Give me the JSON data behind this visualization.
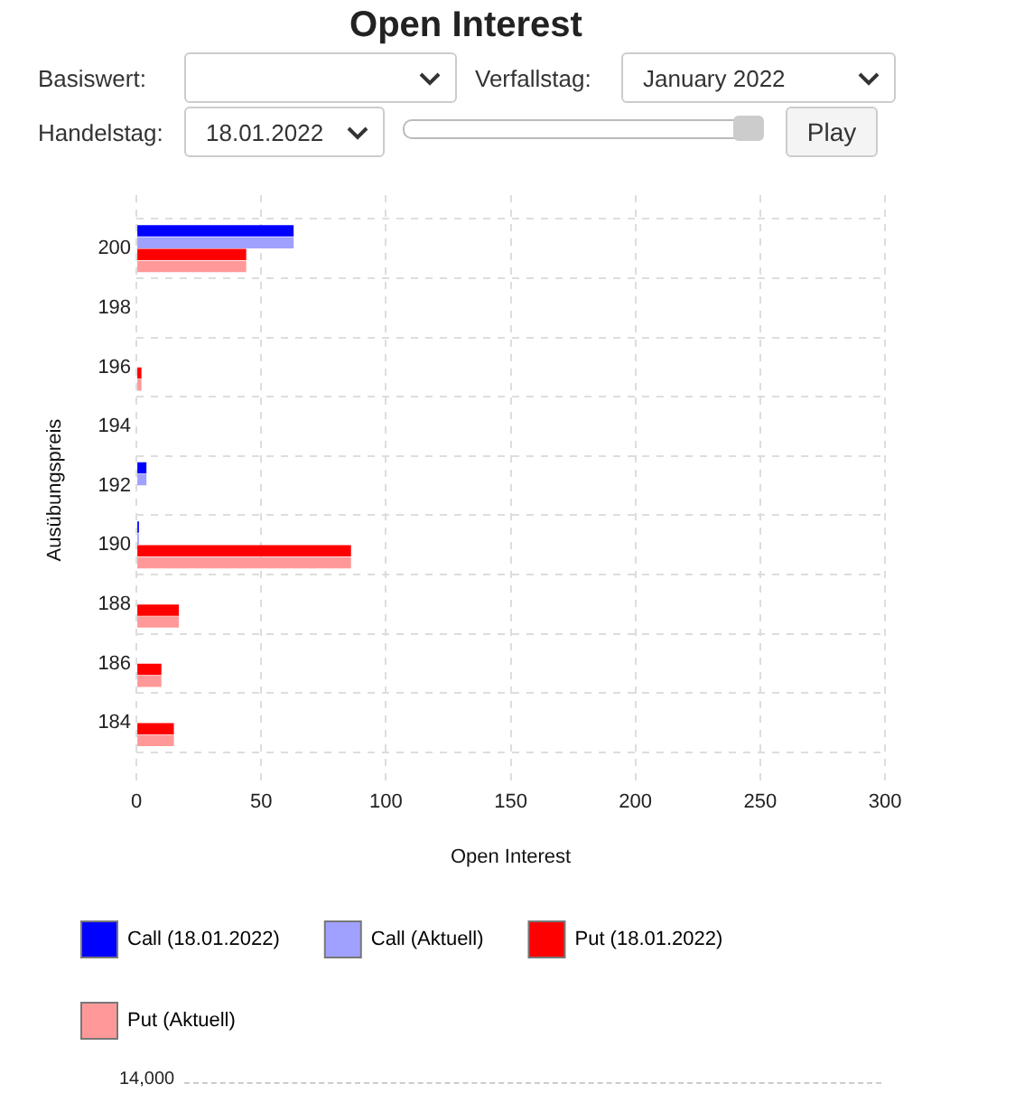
{
  "chart_data": {
    "type": "bar",
    "title": "Open Interest",
    "orientation": "horizontal",
    "x": [
      200,
      196,
      192,
      190,
      188,
      186,
      184
    ],
    "series": [
      {
        "name": "Call (18.01.2022)",
        "color": "#0000ff",
        "values": [
          63,
          null,
          4,
          1,
          null,
          null,
          null
        ]
      },
      {
        "name": "Call (Aktuell)",
        "color": "#a0a0ff",
        "values": [
          63,
          null,
          4,
          1,
          null,
          null,
          null
        ]
      },
      {
        "name": "Put (18.01.2022)",
        "color": "#ff0000",
        "values": [
          44,
          2,
          null,
          86,
          17,
          10,
          15
        ]
      },
      {
        "name": "Put (Aktuell)",
        "color": "#ff9999",
        "values": [
          44,
          2,
          null,
          86,
          17,
          10,
          15
        ]
      }
    ],
    "xlabel": "Open Interest",
    "ylabel": "Ausübungspreis",
    "xlim": [
      0,
      300
    ],
    "xticks": [
      0,
      50,
      100,
      150,
      200,
      250,
      300
    ],
    "ylim": [
      183,
      200.7
    ],
    "yticks": [
      184,
      186,
      188,
      190,
      192,
      194,
      196,
      198,
      200
    ],
    "grid": true,
    "legend": "bottom",
    "annotations": [
      "Basiswert:",
      "Verfallstag:",
      "January 2022",
      "Handelstag:",
      "18.01.2022",
      "Play",
      "14,000"
    ]
  }
}
